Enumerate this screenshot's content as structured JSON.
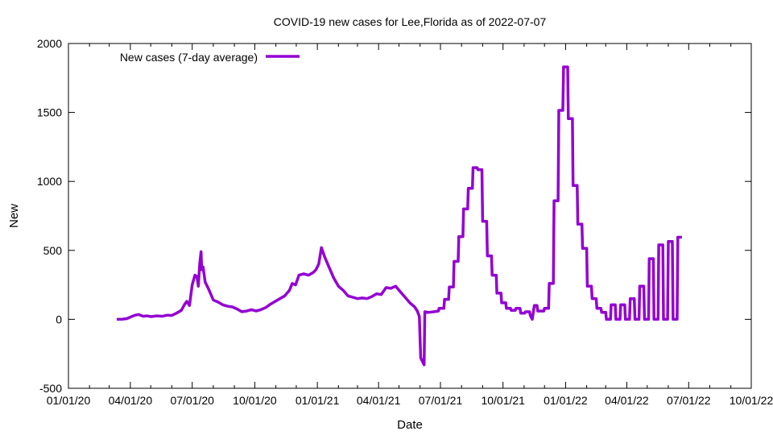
{
  "colors": {
    "series": "#9400d3",
    "axis": "#000000",
    "background": "#ffffff"
  },
  "chart_data": {
    "type": "line",
    "title": "COVID-19 new cases for Lee,Florida as of 2022-07-07",
    "xlabel": "Date",
    "ylabel": "New",
    "xlim": [
      "2020-01-01",
      "2022-10-01"
    ],
    "ylim": [
      -500,
      2000
    ],
    "x_ticks": [
      "01/01/20",
      "04/01/20",
      "07/01/20",
      "10/01/20",
      "01/01/21",
      "04/01/21",
      "07/01/21",
      "10/01/21",
      "01/01/22",
      "04/01/22",
      "07/01/22",
      "10/01/22"
    ],
    "x_tick_dates": [
      "2020-01-01",
      "2020-04-01",
      "2020-07-01",
      "2020-10-01",
      "2021-01-01",
      "2021-04-01",
      "2021-07-01",
      "2021-10-01",
      "2022-01-01",
      "2022-04-01",
      "2022-07-01",
      "2022-10-01"
    ],
    "y_ticks": [
      -500,
      0,
      500,
      1000,
      1500,
      2000
    ],
    "grid": false,
    "legend_position": "top-left",
    "series": [
      {
        "name": "New cases (7-day average)",
        "color": "#9400d3",
        "points": [
          [
            "2020-03-12",
            0
          ],
          [
            "2020-03-20",
            1
          ],
          [
            "2020-03-27",
            5
          ],
          [
            "2020-04-02",
            18
          ],
          [
            "2020-04-08",
            30
          ],
          [
            "2020-04-13",
            35
          ],
          [
            "2020-04-20",
            22
          ],
          [
            "2020-04-25",
            25
          ],
          [
            "2020-05-02",
            20
          ],
          [
            "2020-05-10",
            25
          ],
          [
            "2020-05-18",
            22
          ],
          [
            "2020-05-25",
            30
          ],
          [
            "2020-06-01",
            28
          ],
          [
            "2020-06-08",
            45
          ],
          [
            "2020-06-15",
            65
          ],
          [
            "2020-06-20",
            110
          ],
          [
            "2020-06-23",
            130
          ],
          [
            "2020-06-27",
            100
          ],
          [
            "2020-07-01",
            250
          ],
          [
            "2020-07-05",
            320
          ],
          [
            "2020-07-08",
            310
          ],
          [
            "2020-07-10",
            240
          ],
          [
            "2020-07-12",
            400
          ],
          [
            "2020-07-14",
            490
          ],
          [
            "2020-07-15",
            360
          ],
          [
            "2020-07-17",
            380
          ],
          [
            "2020-07-20",
            270
          ],
          [
            "2020-07-25",
            220
          ],
          [
            "2020-08-01",
            140
          ],
          [
            "2020-08-08",
            125
          ],
          [
            "2020-08-15",
            105
          ],
          [
            "2020-08-22",
            95
          ],
          [
            "2020-08-29",
            90
          ],
          [
            "2020-09-05",
            75
          ],
          [
            "2020-09-12",
            55
          ],
          [
            "2020-09-19",
            60
          ],
          [
            "2020-09-26",
            70
          ],
          [
            "2020-10-03",
            60
          ],
          [
            "2020-10-10",
            70
          ],
          [
            "2020-10-17",
            85
          ],
          [
            "2020-10-24",
            110
          ],
          [
            "2020-10-31",
            130
          ],
          [
            "2020-11-07",
            150
          ],
          [
            "2020-11-14",
            170
          ],
          [
            "2020-11-21",
            210
          ],
          [
            "2020-11-25",
            260
          ],
          [
            "2020-11-30",
            250
          ],
          [
            "2020-12-05",
            320
          ],
          [
            "2020-12-12",
            330
          ],
          [
            "2020-12-19",
            320
          ],
          [
            "2020-12-26",
            340
          ],
          [
            "2020-12-30",
            360
          ],
          [
            "2021-01-03",
            400
          ],
          [
            "2021-01-07",
            520
          ],
          [
            "2021-01-12",
            450
          ],
          [
            "2021-01-18",
            380
          ],
          [
            "2021-01-25",
            300
          ],
          [
            "2021-02-01",
            240
          ],
          [
            "2021-02-08",
            210
          ],
          [
            "2021-02-15",
            170
          ],
          [
            "2021-02-22",
            160
          ],
          [
            "2021-03-01",
            150
          ],
          [
            "2021-03-08",
            155
          ],
          [
            "2021-03-15",
            150
          ],
          [
            "2021-03-22",
            165
          ],
          [
            "2021-03-29",
            185
          ],
          [
            "2021-04-05",
            180
          ],
          [
            "2021-04-12",
            230
          ],
          [
            "2021-04-19",
            225
          ],
          [
            "2021-04-26",
            240
          ],
          [
            "2021-05-03",
            200
          ],
          [
            "2021-05-10",
            160
          ],
          [
            "2021-05-17",
            120
          ],
          [
            "2021-05-24",
            90
          ],
          [
            "2021-05-28",
            60
          ],
          [
            "2021-05-31",
            20
          ],
          [
            "2021-06-02",
            -280
          ],
          [
            "2021-06-07",
            -330
          ],
          [
            "2021-06-08",
            55
          ],
          [
            "2021-06-14",
            50
          ],
          [
            "2021-06-21",
            55
          ],
          [
            "2021-06-28",
            60
          ],
          [
            "2021-06-29",
            80
          ],
          [
            "2021-07-06",
            80
          ],
          [
            "2021-07-07",
            145
          ],
          [
            "2021-07-13",
            145
          ],
          [
            "2021-07-14",
            235
          ],
          [
            "2021-07-20",
            235
          ],
          [
            "2021-07-21",
            420
          ],
          [
            "2021-07-27",
            420
          ],
          [
            "2021-07-28",
            600
          ],
          [
            "2021-08-03",
            600
          ],
          [
            "2021-08-04",
            800
          ],
          [
            "2021-08-10",
            800
          ],
          [
            "2021-08-11",
            950
          ],
          [
            "2021-08-17",
            950
          ],
          [
            "2021-08-18",
            1100
          ],
          [
            "2021-08-24",
            1100
          ],
          [
            "2021-08-25",
            1085
          ],
          [
            "2021-08-31",
            1085
          ],
          [
            "2021-09-01",
            710
          ],
          [
            "2021-09-07",
            710
          ],
          [
            "2021-09-08",
            460
          ],
          [
            "2021-09-14",
            460
          ],
          [
            "2021-09-15",
            320
          ],
          [
            "2021-09-21",
            320
          ],
          [
            "2021-09-22",
            190
          ],
          [
            "2021-09-28",
            190
          ],
          [
            "2021-09-29",
            120
          ],
          [
            "2021-10-05",
            120
          ],
          [
            "2021-10-06",
            80
          ],
          [
            "2021-10-12",
            80
          ],
          [
            "2021-10-13",
            65
          ],
          [
            "2021-10-19",
            65
          ],
          [
            "2021-10-20",
            80
          ],
          [
            "2021-10-26",
            80
          ],
          [
            "2021-10-27",
            45
          ],
          [
            "2021-11-02",
            45
          ],
          [
            "2021-11-03",
            55
          ],
          [
            "2021-11-09",
            55
          ],
          [
            "2021-11-10",
            30
          ],
          [
            "2021-11-13",
            0
          ],
          [
            "2021-11-16",
            100
          ],
          [
            "2021-11-20",
            100
          ],
          [
            "2021-11-21",
            60
          ],
          [
            "2021-11-30",
            60
          ],
          [
            "2021-12-01",
            80
          ],
          [
            "2021-12-07",
            80
          ],
          [
            "2021-12-08",
            260
          ],
          [
            "2021-12-14",
            260
          ],
          [
            "2021-12-15",
            860
          ],
          [
            "2021-12-21",
            860
          ],
          [
            "2021-12-22",
            1515
          ],
          [
            "2021-12-28",
            1515
          ],
          [
            "2021-12-29",
            1830
          ],
          [
            "2022-01-04",
            1830
          ],
          [
            "2022-01-05",
            1455
          ],
          [
            "2022-01-11",
            1455
          ],
          [
            "2022-01-12",
            970
          ],
          [
            "2022-01-18",
            970
          ],
          [
            "2022-01-19",
            690
          ],
          [
            "2022-01-25",
            690
          ],
          [
            "2022-01-26",
            515
          ],
          [
            "2022-02-01",
            515
          ],
          [
            "2022-02-02",
            240
          ],
          [
            "2022-02-08",
            240
          ],
          [
            "2022-02-09",
            150
          ],
          [
            "2022-02-15",
            150
          ],
          [
            "2022-02-16",
            80
          ],
          [
            "2022-02-22",
            80
          ],
          [
            "2022-02-23",
            50
          ],
          [
            "2022-03-01",
            50
          ],
          [
            "2022-03-02",
            0
          ],
          [
            "2022-03-08",
            0
          ],
          [
            "2022-03-09",
            105
          ],
          [
            "2022-03-15",
            105
          ],
          [
            "2022-03-16",
            0
          ],
          [
            "2022-03-22",
            0
          ],
          [
            "2022-03-23",
            105
          ],
          [
            "2022-03-29",
            105
          ],
          [
            "2022-03-30",
            0
          ],
          [
            "2022-04-05",
            0
          ],
          [
            "2022-04-06",
            150
          ],
          [
            "2022-04-12",
            150
          ],
          [
            "2022-04-13",
            0
          ],
          [
            "2022-04-19",
            0
          ],
          [
            "2022-04-20",
            240
          ],
          [
            "2022-04-26",
            240
          ],
          [
            "2022-04-27",
            0
          ],
          [
            "2022-05-03",
            0
          ],
          [
            "2022-05-04",
            440
          ],
          [
            "2022-05-10",
            440
          ],
          [
            "2022-05-11",
            0
          ],
          [
            "2022-05-17",
            0
          ],
          [
            "2022-05-18",
            540
          ],
          [
            "2022-05-24",
            540
          ],
          [
            "2022-05-25",
            0
          ],
          [
            "2022-05-31",
            0
          ],
          [
            "2022-06-01",
            565
          ],
          [
            "2022-06-07",
            565
          ],
          [
            "2022-06-08",
            0
          ],
          [
            "2022-06-14",
            0
          ],
          [
            "2022-06-15",
            595
          ],
          [
            "2022-06-21",
            595
          ]
        ]
      }
    ]
  }
}
